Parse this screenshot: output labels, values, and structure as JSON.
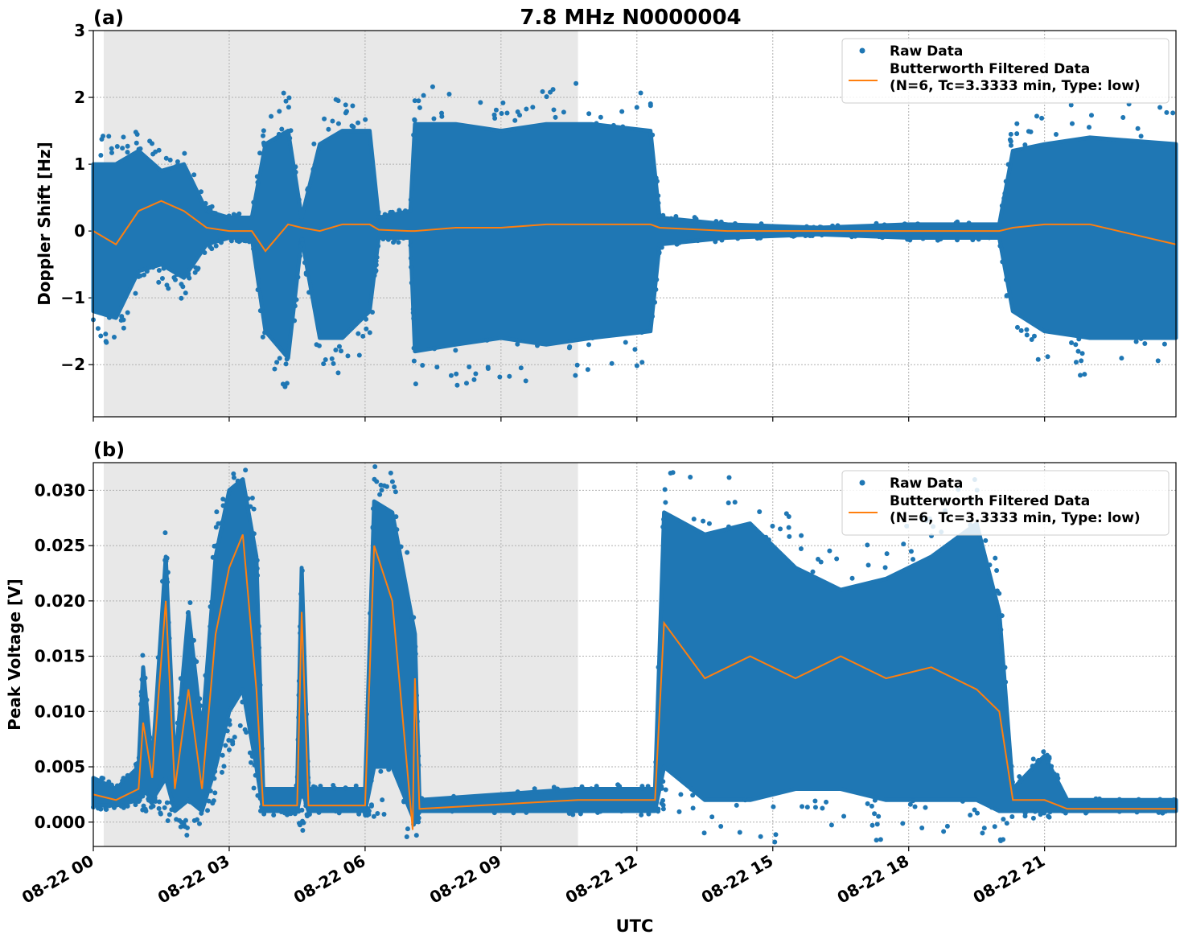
{
  "title": "7.8 MHz N0000004",
  "colors": {
    "raw": "#1f77b4",
    "filtered": "#ff7f0e",
    "shade": "#e8e8e8"
  },
  "legend": {
    "raw": "Raw Data",
    "filtered_line1": "Butterworth Filtered Data",
    "filtered_line2": "(N=6, Tc=3.3333 min, Type: low)",
    "placement": "top-right"
  },
  "xlabel": "UTC",
  "x_ticks": [
    {
      "h": 0,
      "label": "08-22 00"
    },
    {
      "h": 3,
      "label": "08-22 03"
    },
    {
      "h": 6,
      "label": "08-22 06"
    },
    {
      "h": 9,
      "label": "08-22 09"
    },
    {
      "h": 12,
      "label": "08-22 12"
    },
    {
      "h": 15,
      "label": "08-22 15"
    },
    {
      "h": 18,
      "label": "08-22 18"
    },
    {
      "h": 21,
      "label": "08-22 21"
    }
  ],
  "xlim_hours": [
    0,
    23.9
  ],
  "shaded_interval_hours": [
    0.23,
    10.7
  ],
  "chart_data": [
    {
      "type": "scatter",
      "panel": "(a)",
      "ylabel": "Doppler Shift [Hz]",
      "ylim": [
        -2.78,
        3
      ],
      "y_ticks": [
        {
          "v": -2,
          "label": "−2"
        },
        {
          "v": -1,
          "label": "−1"
        },
        {
          "v": 0,
          "label": "0"
        },
        {
          "v": 1,
          "label": "1"
        },
        {
          "v": 2,
          "label": "2"
        },
        {
          "v": 3,
          "label": "3"
        }
      ],
      "grid": true,
      "raw_envelope": {
        "x": [
          0,
          0.5,
          1.0,
          1.5,
          2.0,
          2.5,
          3.0,
          3.5,
          3.8,
          4.3,
          4.6,
          5.0,
          5.5,
          6.1,
          6.3,
          7.0,
          7.1,
          8,
          9,
          10,
          11,
          12.3,
          12.5,
          14,
          16,
          18,
          20,
          20.3,
          21,
          22,
          23.9
        ],
        "lo": [
          -1.2,
          -1.3,
          -0.6,
          -0.5,
          -0.7,
          -0.2,
          -0.1,
          -0.1,
          -1.5,
          -1.9,
          -0.1,
          -1.6,
          -1.6,
          -1.2,
          -0.1,
          -0.1,
          -1.8,
          -1.7,
          -1.6,
          -1.7,
          -1.6,
          -1.5,
          -0.2,
          -0.1,
          -0.05,
          -0.1,
          -0.1,
          -1.2,
          -1.5,
          -1.6,
          -1.6
        ],
        "hi": [
          1.0,
          1.0,
          1.2,
          0.9,
          1.0,
          0.3,
          0.2,
          0.2,
          1.3,
          1.5,
          0.2,
          1.3,
          1.5,
          1.5,
          0.2,
          0.3,
          1.6,
          1.6,
          1.5,
          1.6,
          1.6,
          1.5,
          0.2,
          0.1,
          0.05,
          0.1,
          0.1,
          1.2,
          1.3,
          1.4,
          1.3
        ]
      },
      "filtered": {
        "x": [
          0,
          0.5,
          1.0,
          1.5,
          2.0,
          2.5,
          3.0,
          3.5,
          3.8,
          4.3,
          4.6,
          5.0,
          5.5,
          6.1,
          6.3,
          7.0,
          7.1,
          8,
          9,
          10,
          11,
          12.3,
          12.5,
          14,
          16,
          18,
          20,
          20.3,
          21,
          22,
          23.9
        ],
        "y": [
          0,
          -0.2,
          0.3,
          0.45,
          0.3,
          0.05,
          0,
          0,
          -0.3,
          0.1,
          0.05,
          0,
          0.1,
          0.1,
          0.02,
          0,
          0,
          0.05,
          0.05,
          0.1,
          0.1,
          0.1,
          0.05,
          0,
          0,
          0,
          0,
          0.05,
          0.1,
          0.1,
          -0.2
        ]
      }
    },
    {
      "type": "scatter",
      "panel": "(b)",
      "ylabel": "Peak Voltage [V]",
      "ylim": [
        -0.0022,
        0.0325
      ],
      "y_ticks": [
        {
          "v": 0,
          "label": "0.000"
        },
        {
          "v": 0.005,
          "label": "0.005"
        },
        {
          "v": 0.01,
          "label": "0.010"
        },
        {
          "v": 0.015,
          "label": "0.015"
        },
        {
          "v": 0.02,
          "label": "0.020"
        },
        {
          "v": 0.025,
          "label": "0.025"
        },
        {
          "v": 0.03,
          "label": "0.030"
        }
      ],
      "grid": true,
      "raw_envelope": {
        "x": [
          0,
          0.5,
          1.0,
          1.1,
          1.3,
          1.6,
          1.8,
          2.1,
          2.4,
          2.7,
          3.0,
          3.3,
          3.6,
          3.75,
          4.5,
          4.6,
          4.75,
          6.0,
          6.2,
          6.6,
          7.1,
          7.2,
          10.7,
          12.4,
          12.6,
          13.5,
          14.5,
          15.5,
          16.5,
          17.5,
          18.5,
          19.5,
          20.0,
          20.3,
          21,
          21.5,
          23.9
        ],
        "lo": [
          0.0015,
          0.0015,
          0.002,
          0.003,
          0.002,
          0.004,
          0.001,
          0.002,
          0.001,
          0.005,
          0.01,
          0.012,
          0.005,
          0.001,
          0.001,
          0.003,
          0.001,
          0.001,
          0.005,
          0.005,
          0.0,
          0.001,
          0.001,
          0.001,
          0.005,
          0.002,
          0.002,
          0.003,
          0.003,
          0.002,
          0.002,
          0.002,
          0.001,
          0.001,
          0.001,
          0.001,
          0.001
        ],
        "hi": [
          0.004,
          0.003,
          0.005,
          0.014,
          0.005,
          0.024,
          0.005,
          0.019,
          0.008,
          0.024,
          0.03,
          0.031,
          0.024,
          0.003,
          0.003,
          0.023,
          0.003,
          0.003,
          0.029,
          0.028,
          0.017,
          0.002,
          0.003,
          0.003,
          0.028,
          0.026,
          0.027,
          0.023,
          0.021,
          0.022,
          0.024,
          0.027,
          0.019,
          0.003,
          0.006,
          0.002,
          0.002
        ]
      },
      "filtered": {
        "x": [
          0,
          0.5,
          1.0,
          1.1,
          1.3,
          1.6,
          1.8,
          2.1,
          2.4,
          2.7,
          3.0,
          3.3,
          3.6,
          3.75,
          4.5,
          4.6,
          4.75,
          6.0,
          6.2,
          6.6,
          7.05,
          7.1,
          7.2,
          10.7,
          12.4,
          12.6,
          13.5,
          14.5,
          15.5,
          16.5,
          17.5,
          18.5,
          19.5,
          20.0,
          20.3,
          21,
          21.5,
          23.9
        ],
        "y": [
          0.0025,
          0.002,
          0.003,
          0.009,
          0.004,
          0.02,
          0.003,
          0.012,
          0.003,
          0.017,
          0.023,
          0.026,
          0.012,
          0.0015,
          0.0015,
          0.019,
          0.0015,
          0.0015,
          0.025,
          0.02,
          -0.0007,
          0.013,
          0.0012,
          0.002,
          0.002,
          0.018,
          0.013,
          0.015,
          0.013,
          0.015,
          0.013,
          0.014,
          0.012,
          0.01,
          0.002,
          0.002,
          0.0012,
          0.0012
        ]
      }
    }
  ]
}
